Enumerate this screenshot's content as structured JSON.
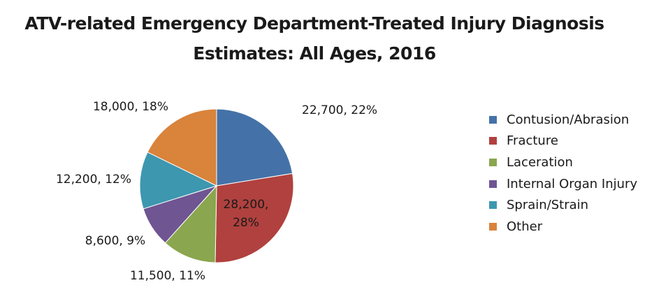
{
  "chart_data": {
    "type": "pie",
    "title_lines": [
      "ATV-related Emergency Department-Treated Injury Diagnosis",
      "Estimates: All Ages, 2016"
    ],
    "categories": [
      "Contusion/Abrasion",
      "Fracture",
      "Laceration",
      "Internal Organ Injury",
      "Sprain/Strain",
      "Other"
    ],
    "values": [
      22700,
      28200,
      11500,
      8600,
      12200,
      18000
    ],
    "percentages": [
      22,
      28,
      11,
      9,
      12,
      18
    ],
    "data_labels": [
      [
        "22,700, 22%"
      ],
      [
        "28,200,",
        "28%"
      ],
      [
        "11,500, 11%"
      ],
      [
        "8,600, 9%"
      ],
      [
        "12,200, 12%"
      ],
      [
        "18,000, 18%"
      ]
    ],
    "colors": [
      "#4472A8",
      "#B0413E",
      "#8AA64E",
      "#6F5592",
      "#3D97AF",
      "#D9833B"
    ],
    "start_angle_deg": 0,
    "direction": "clockwise",
    "legend_position": "right"
  }
}
